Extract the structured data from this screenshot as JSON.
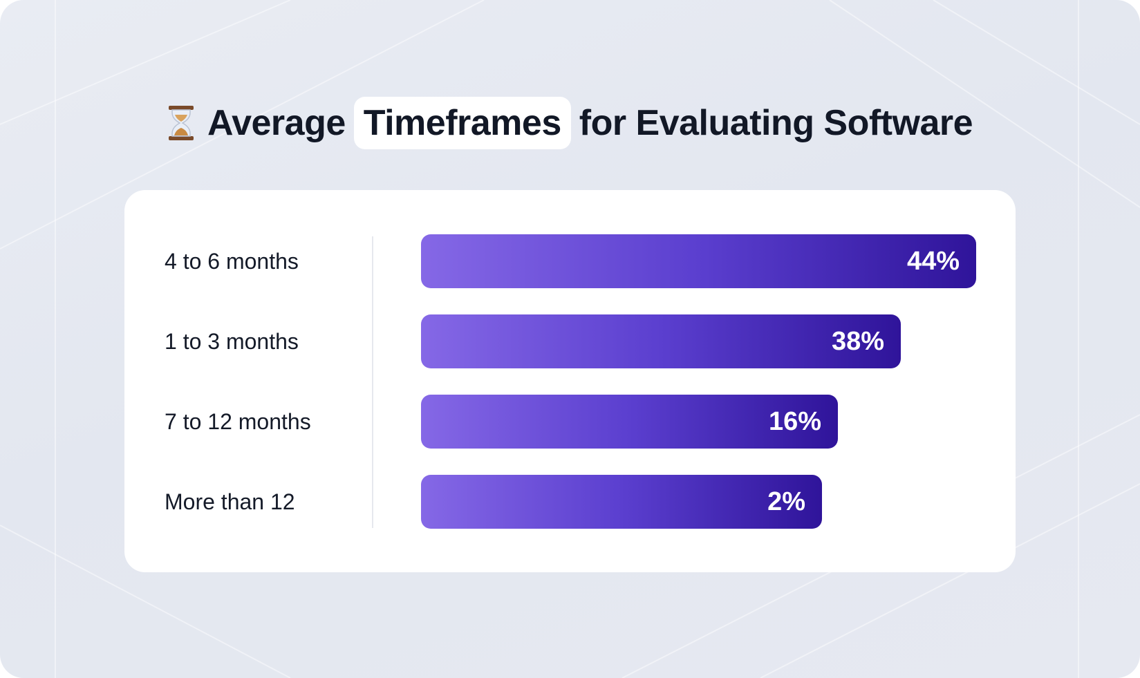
{
  "title": {
    "icon": "hourglass-icon",
    "before": "Average",
    "highlight": "Timeframes",
    "after": "for Evaluating Software"
  },
  "colors": {
    "bar_start": "#8568e6",
    "bar_end": "#2f149a",
    "text": "#141a28",
    "card": "#ffffff",
    "background": "#e6e9f1"
  },
  "chart_data": {
    "type": "bar",
    "orientation": "horizontal",
    "categories": [
      "4 to 6 months",
      "1 to 3 months",
      "7 to 12 months",
      "More than 12"
    ],
    "values": [
      44,
      38,
      16,
      2
    ],
    "value_labels": [
      "44%",
      "38%",
      "16%",
      "2%"
    ],
    "unit": "%",
    "grid": false,
    "legend": "none"
  }
}
